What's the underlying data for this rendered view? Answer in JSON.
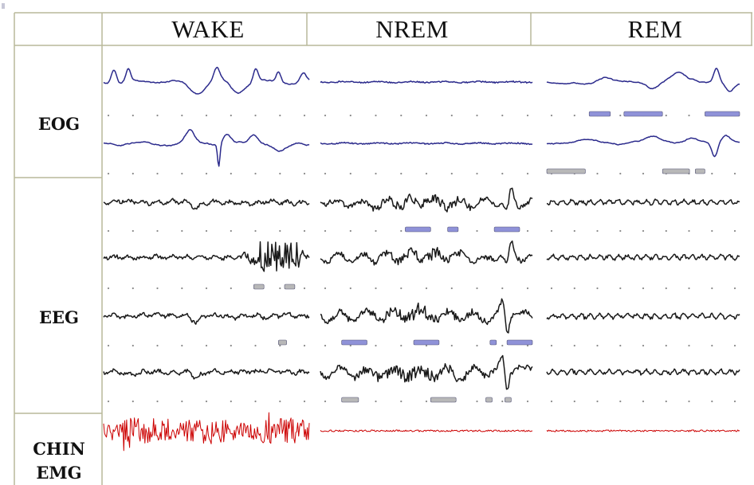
{
  "columns": [
    {
      "key": "wake",
      "label": "WAKE"
    },
    {
      "key": "nrem",
      "label": "NREM"
    },
    {
      "key": "rem",
      "label": "REM"
    }
  ],
  "rows": {
    "eog": {
      "label": "EOG"
    },
    "eeg": {
      "label": "EEG"
    },
    "emg": {
      "label_line1": "CHIN",
      "label_line2": "EMG"
    }
  },
  "colors": {
    "eog_trace": "#2b2a8c",
    "eeg_trace": "#1a1a1a",
    "emg_trace": "#cc0000",
    "grid_line": "#b9b99a",
    "marker_blue": "#8f92d8",
    "marker_grey": "#b8b8b8"
  },
  "channels": [
    {
      "id": "eog-1",
      "kind": "eog",
      "color_key": "eog_trace",
      "styles": {
        "wake": "eog-wake-1",
        "nrem": "flat",
        "rem": "eog-rem-1"
      }
    },
    {
      "id": "eog-2",
      "kind": "eog",
      "color_key": "eog_trace",
      "styles": {
        "wake": "eog-wake-2",
        "nrem": "flat",
        "rem": "eog-rem-2"
      }
    },
    {
      "id": "eeg-1",
      "kind": "eeg",
      "color_key": "eeg_trace",
      "styles": {
        "wake": "eeg-wake",
        "nrem": "eeg-nrem",
        "rem": "eeg-rem"
      }
    },
    {
      "id": "eeg-2",
      "kind": "eeg",
      "color_key": "eeg_trace",
      "styles": {
        "wake": "eeg-wake-burst",
        "nrem": "eeg-nrem",
        "rem": "eeg-rem"
      }
    },
    {
      "id": "eeg-3",
      "kind": "eeg",
      "color_key": "eeg_trace",
      "styles": {
        "wake": "eeg-wake",
        "nrem": "eeg-nrem-spike",
        "rem": "eeg-rem"
      }
    },
    {
      "id": "eeg-4",
      "kind": "eeg",
      "color_key": "eeg_trace",
      "styles": {
        "wake": "eeg-wake",
        "nrem": "eeg-nrem-spike",
        "rem": "eeg-rem"
      }
    },
    {
      "id": "emg-1",
      "kind": "emg",
      "color_key": "emg_trace",
      "styles": {
        "wake": "emg-high",
        "nrem": "emg-low",
        "rem": "emg-low"
      }
    }
  ],
  "markers": [
    {
      "channel": "eog-1",
      "column": "rem",
      "color_key": "marker_blue",
      "spans": [
        [
          0.22,
          0.33
        ],
        [
          0.4,
          0.6
        ],
        [
          0.82,
          1.0
        ]
      ]
    },
    {
      "channel": "eog-2",
      "column": "rem",
      "color_key": "marker_grey",
      "spans": [
        [
          0.0,
          0.2
        ],
        [
          0.6,
          0.74
        ],
        [
          0.77,
          0.82
        ]
      ]
    },
    {
      "channel": "eeg-1",
      "column": "nrem",
      "color_key": "marker_blue",
      "spans": [
        [
          0.4,
          0.52
        ],
        [
          0.6,
          0.65
        ],
        [
          0.82,
          0.94
        ]
      ]
    },
    {
      "channel": "eeg-2",
      "column": "wake",
      "color_key": "marker_grey",
      "spans": [
        [
          0.73,
          0.78
        ],
        [
          0.88,
          0.93
        ]
      ]
    },
    {
      "channel": "eeg-3",
      "column": "wake",
      "color_key": "marker_grey",
      "spans": [
        [
          0.85,
          0.89
        ]
      ]
    },
    {
      "channel": "eeg-3",
      "column": "nrem",
      "color_key": "marker_blue",
      "spans": [
        [
          0.1,
          0.22
        ],
        [
          0.44,
          0.56
        ],
        [
          0.8,
          0.83
        ],
        [
          0.88,
          1.0
        ]
      ]
    },
    {
      "channel": "eeg-4",
      "column": "nrem",
      "color_key": "marker_grey",
      "spans": [
        [
          0.1,
          0.18
        ],
        [
          0.52,
          0.64
        ],
        [
          0.78,
          0.81
        ],
        [
          0.87,
          0.9
        ]
      ]
    }
  ]
}
